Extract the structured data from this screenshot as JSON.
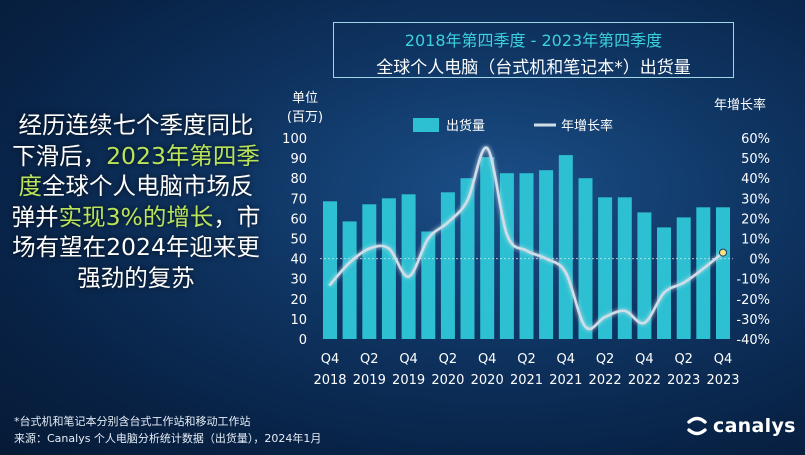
{
  "title": {
    "line1": "2018年第四季度 - 2023年第四季度",
    "line2": "全球个人电脑（台式机和笔记本*）出货量"
  },
  "headline": {
    "part1": "经历连续七个季度同比下滑后，",
    "part2": "2023年第四季度",
    "part3": "全球个人电脑市场反弹并",
    "part4": "实现3%的增长",
    "part5": "，市场有望在2024年迎来更强劲的复苏"
  },
  "footnote": {
    "line1": "*台式机和笔记本分别含台式工作站和移动工作站",
    "line2": "来源：Canalys 个人电脑分析统计数据（出货量），2024年1月"
  },
  "brand": {
    "name": "canalys"
  },
  "colors": {
    "bar": "#2cc0d2",
    "line": "#d0dee9",
    "highlight": "#b8e35b",
    "title_accent": "#3bd1e0"
  },
  "chart_data": {
    "type": "bar",
    "categories": [
      "Q4 2018",
      "Q1 2019",
      "Q2 2019",
      "Q3 2019",
      "Q4 2019",
      "Q1 2020",
      "Q2 2020",
      "Q3 2020",
      "Q4 2020",
      "Q1 2021",
      "Q2 2021",
      "Q3 2021",
      "Q4 2021",
      "Q1 2022",
      "Q2 2022",
      "Q3 2022",
      "Q4 2022",
      "Q1 2023",
      "Q2 2023",
      "Q3 2023",
      "Q4 2023"
    ],
    "x_tick_labels": [
      {
        "quarter": "Q4",
        "year": "2018"
      },
      {
        "quarter": "Q2",
        "year": "2019"
      },
      {
        "quarter": "Q4",
        "year": "2019"
      },
      {
        "quarter": "Q2",
        "year": "2020"
      },
      {
        "quarter": "Q4",
        "year": "2020"
      },
      {
        "quarter": "Q2",
        "year": "2021"
      },
      {
        "quarter": "Q4",
        "year": "2021"
      },
      {
        "quarter": "Q2",
        "year": "2022"
      },
      {
        "quarter": "Q4",
        "year": "2022"
      },
      {
        "quarter": "Q2",
        "year": "2023"
      },
      {
        "quarter": "Q4",
        "year": "2023"
      }
    ],
    "series": [
      {
        "name": "出货量",
        "type": "bar",
        "axis": "left",
        "values": [
          68.5,
          58.5,
          67,
          70,
          72,
          53.5,
          73,
          80,
          90.5,
          82.5,
          82.5,
          84,
          91.5,
          80,
          70.5,
          70.5,
          63,
          55.5,
          60.5,
          65.5,
          65.5
        ]
      },
      {
        "name": "年增长率",
        "type": "line",
        "axis": "right",
        "values": [
          -13,
          -2,
          5,
          5,
          -9,
          10,
          18,
          29,
          55,
          12,
          4,
          0,
          -7,
          -34,
          -29,
          -26,
          -32,
          -17,
          -12,
          -5,
          3
        ]
      }
    ],
    "left_axis": {
      "label_line1": "单位",
      "label_line2": "(百万)",
      "ylim": [
        0,
        100
      ],
      "ticks": [
        0,
        10,
        20,
        30,
        40,
        50,
        60,
        70,
        80,
        90,
        100
      ]
    },
    "right_axis": {
      "label": "年增长率",
      "ylim": [
        -40,
        60
      ],
      "ticks": [
        "60%",
        "50%",
        "40%",
        "30%",
        "20%",
        "10%",
        "0%",
        "-10%",
        "-20%",
        "-30%",
        "-40%"
      ]
    },
    "reference_line": {
      "axis": "right",
      "value": 0
    },
    "legend": {
      "position": "top",
      "bar_label": "出货量",
      "line_label": "年增长率"
    },
    "grid": false
  }
}
